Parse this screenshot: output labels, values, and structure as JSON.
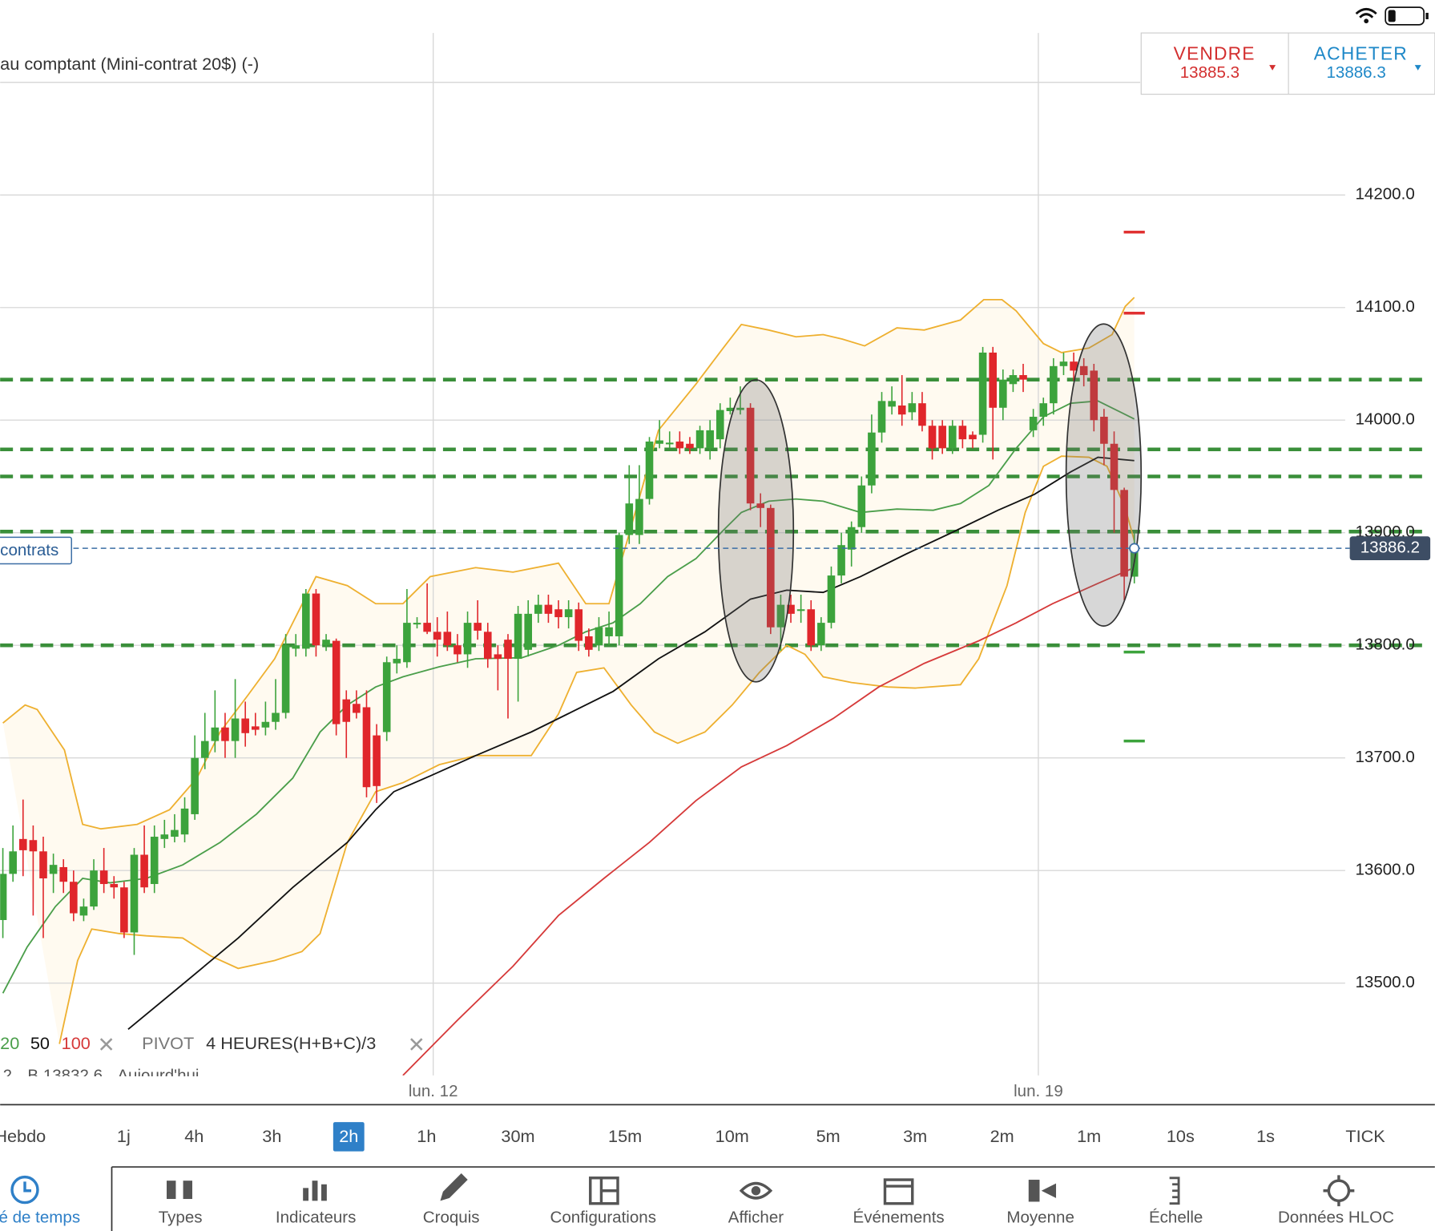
{
  "header_title": "au comptant (Mini-contrat 20$) (-)",
  "quote": {
    "sell_label": "VENDRE",
    "sell_price": 13885.3,
    "buy_label": "ACHETER",
    "buy_price": 13886.3
  },
  "chart_data": {
    "type": "candlestick",
    "up_color": "#3ca33c",
    "down_color": "#e0262b",
    "open": [
      13556,
      13597,
      13628,
      13627,
      13617,
      13597,
      13603,
      13590,
      13560,
      13568,
      13600,
      13588,
      13585,
      13545,
      13614,
      13588,
      13628,
      13630,
      13632,
      13650,
      13700,
      13715,
      13727,
      13715,
      13735,
      13728,
      13727,
      13732,
      13740,
      13797,
      13797,
      13846,
      13800,
      13804,
      13752,
      13748,
      13745,
      13720,
      13723,
      13784,
      13785,
      13819,
      13820,
      13812,
      13812,
      13800,
      13792,
      13820,
      13812,
      13792,
      13805,
      13788,
      13796,
      13828,
      13836,
      13832,
      13825,
      13832,
      13808,
      13800,
      13808,
      13808,
      13898,
      13898,
      13930,
      13979,
      13980,
      13981,
      13979,
      13975,
      13975,
      13983,
      14008,
      14009,
      14011,
      13926,
      13922,
      13816,
      13836,
      13832,
      13832,
      13800,
      13820,
      13862,
      13885,
      13905,
      13942,
      13989,
      14012,
      14013,
      14007,
      14015,
      13995,
      13995,
      13975,
      13995,
      13987,
      13987,
      14060,
      14011,
      14032,
      14040,
      13991,
      14003,
      14015,
      14048,
      14052,
      14048,
      14044,
      14003,
      13979,
      13938,
      13861
    ],
    "high": [
      13620,
      13640,
      13663,
      13640,
      13630,
      13615,
      13610,
      13600,
      13575,
      13610,
      13620,
      13595,
      13590,
      13620,
      13640,
      13640,
      13645,
      13650,
      13665,
      13720,
      13740,
      13760,
      13740,
      13770,
      13750,
      13740,
      13750,
      13770,
      13810,
      13810,
      13850,
      13850,
      13810,
      13806,
      13760,
      13760,
      13760,
      13730,
      13790,
      13800,
      13850,
      13825,
      13855,
      13825,
      13830,
      13810,
      13830,
      13840,
      13820,
      13800,
      13810,
      13835,
      13840,
      13845,
      13845,
      13840,
      13840,
      13838,
      13815,
      13825,
      13830,
      13900,
      13960,
      13960,
      13985,
      14000,
      13990,
      13990,
      13985,
      13995,
      14000,
      14015,
      14020,
      14030,
      14015,
      13935,
      13925,
      13845,
      13845,
      13845,
      13840,
      13825,
      13870,
      13900,
      13910,
      13950,
      14005,
      14025,
      14030,
      14040,
      14025,
      14025,
      14000,
      14000,
      14000,
      14000,
      13990,
      14065,
      14065,
      14045,
      14045,
      14050,
      14010,
      14020,
      14055,
      14060,
      14060,
      14055,
      14050,
      14010,
      13990,
      13940,
      13900
    ],
    "low": [
      13540,
      13590,
      13595,
      13560,
      13540,
      13580,
      13580,
      13555,
      13555,
      13565,
      13580,
      13575,
      13540,
      13525,
      13580,
      13580,
      13620,
      13625,
      13625,
      13645,
      13690,
      13705,
      13700,
      13700,
      13710,
      13720,
      13720,
      13725,
      13735,
      13790,
      13790,
      13790,
      13795,
      13720,
      13700,
      13735,
      13665,
      13660,
      13715,
      13775,
      13780,
      13815,
      13810,
      13790,
      13795,
      13785,
      13780,
      13805,
      13780,
      13760,
      13735,
      13750,
      13790,
      13820,
      13820,
      13815,
      13815,
      13795,
      13790,
      13795,
      13800,
      13800,
      13890,
      13890,
      13925,
      13975,
      13975,
      13970,
      13970,
      13970,
      13965,
      13975,
      14005,
      14005,
      13920,
      13905,
      13810,
      13795,
      13820,
      13820,
      13795,
      13795,
      13815,
      13855,
      13870,
      13900,
      13935,
      13980,
      14005,
      13995,
      14000,
      13990,
      13965,
      13970,
      13970,
      13975,
      13975,
      13980,
      13965,
      14000,
      14025,
      14025,
      13985,
      13995,
      14005,
      14040,
      14035,
      14030,
      13990,
      13960,
      13900,
      13840,
      13855
    ],
    "close": [
      13597,
      13617,
      13618,
      13617,
      13593,
      13605,
      13590,
      13562,
      13568,
      13600,
      13588,
      13585,
      13545,
      13614,
      13585,
      13630,
      13632,
      13636,
      13655,
      13700,
      13715,
      13727,
      13715,
      13735,
      13722,
      13725,
      13732,
      13740,
      13800,
      13800,
      13846,
      13800,
      13805,
      13730,
      13732,
      13740,
      13674,
      13675,
      13785,
      13788,
      13820,
      13820,
      13812,
      13805,
      13800,
      13792,
      13820,
      13813,
      13788,
      13788,
      13788,
      13828,
      13828,
      13836,
      13828,
      13825,
      13832,
      13804,
      13796,
      13816,
      13816,
      13898,
      13926,
      13930,
      13981,
      13982,
      13980,
      13975,
      13975,
      13991,
      13991,
      14009,
      14011,
      14011,
      13926,
      13922,
      13816,
      13836,
      13828,
      13832,
      13800,
      13820,
      13862,
      13889,
      13905,
      13942,
      13989,
      14017,
      14017,
      14005,
      14015,
      13995,
      13975,
      13975,
      13995,
      13983,
      13983,
      14060,
      14011,
      14036,
      14040,
      14036,
      14003,
      14015,
      14048,
      14052,
      14044,
      14040,
      14000,
      13979,
      13938,
      13861,
      13886
    ],
    "xlim": [
      -0.27,
      141.75
    ],
    "ylim": [
      13418,
      14300
    ],
    "yticks": [
      {
        "value": 13500,
        "label": "13500.0"
      },
      {
        "value": 13600,
        "label": "13600.0"
      },
      {
        "value": 13700,
        "label": "13700.0"
      },
      {
        "value": 13800,
        "label": "13800.0"
      },
      {
        "value": 13900,
        "label": "13900.0"
      },
      {
        "value": 14000,
        "label": "14000.0"
      },
      {
        "value": 14100,
        "label": "14100.0"
      },
      {
        "value": 14200,
        "label": "14200.0"
      }
    ],
    "x_labels": [
      {
        "value": 42.6,
        "label": "lun. 12"
      },
      {
        "value": 102.5,
        "label": "lun. 19"
      }
    ],
    "bands": {
      "color": "#eeb030",
      "fill": "#fffaf0",
      "upper": {
        "x": [
          0,
          2.2,
          3.4,
          6.1,
          7.9,
          9.7,
          13.3,
          16.5,
          19.2,
          21.5,
          24.2,
          26.9,
          28.7,
          31,
          34.1,
          36.9,
          39.6,
          42.3,
          46.8,
          50.5,
          55,
          57.7,
          60,
          61.8,
          64.9,
          68.6,
          71.3,
          73.1,
          75.8,
          78.5,
          81.2,
          83.1,
          85.3,
          88.5,
          91.2,
          94.8,
          97.1,
          98.9,
          100.3,
          103,
          104.8,
          107.5,
          109.8,
          111.1,
          112
        ],
        "values": [
          13731,
          13747,
          13743,
          13707,
          13641,
          13637,
          13641,
          13654,
          13682,
          13723,
          13755,
          13788,
          13820,
          13861,
          13853,
          13837,
          13837,
          13861,
          13869,
          13865,
          13873,
          13837,
          13837,
          13893,
          13991,
          14032,
          14064,
          14085,
          14080,
          14074,
          14076,
          14072,
          14066,
          14082,
          14080,
          14089,
          14107,
          14107,
          14097,
          14068,
          14060,
          14064,
          14076,
          14101,
          14109
        ]
      },
      "lower": {
        "x": [
          5.6,
          7.4,
          8.8,
          11.5,
          14.2,
          17.8,
          20.6,
          23.3,
          26.9,
          29.6,
          31.4,
          34.1,
          36.9,
          39.6,
          43.2,
          46.8,
          52.3,
          55,
          56.8,
          59.5,
          62.2,
          64.5,
          66.8,
          69.5,
          72.2,
          74.9,
          77.6,
          79.4,
          81.2,
          84,
          87.6,
          90.3,
          94.8,
          96.6,
          99.4,
          101.2,
          103,
          104.8,
          107.5,
          109.3,
          111.1,
          112
        ],
        "values": [
          13446,
          13520,
          13548,
          13544,
          13542,
          13540,
          13524,
          13513,
          13520,
          13528,
          13544,
          13625,
          13670,
          13678,
          13694,
          13702,
          13702,
          13739,
          13776,
          13780,
          13747,
          13723,
          13713,
          13723,
          13747,
          13776,
          13800,
          13792,
          13772,
          13767,
          13763,
          13762,
          13765,
          13788,
          13853,
          13918,
          13959,
          13968,
          13967,
          13959,
          13922,
          13893
        ]
      }
    },
    "indicators": [
      {
        "name": "20",
        "color": "#4a9e4a",
        "x": [
          0,
          2.4,
          5.2,
          7.9,
          10.6,
          14.2,
          17.8,
          21.5,
          25.1,
          28.7,
          31.4,
          34.1,
          36.9,
          39.6,
          43.2,
          46.8,
          51.4,
          55,
          57.7,
          60.4,
          63.1,
          65.8,
          68.6,
          71.3,
          73.1,
          75.8,
          78.5,
          81.2,
          84.9,
          88.5,
          92.1,
          94.8,
          97.6,
          100.3,
          103,
          105.7,
          108.4,
          112
        ],
        "values": [
          13491,
          13532,
          13568,
          13593,
          13589,
          13593,
          13605,
          13625,
          13650,
          13682,
          13723,
          13747,
          13763,
          13772,
          13781,
          13788,
          13789,
          13800,
          13812,
          13820,
          13837,
          13861,
          13877,
          13902,
          13918,
          13928,
          13930,
          13928,
          13918,
          13921,
          13920,
          13926,
          13942,
          13975,
          14003,
          14015,
          14017,
          14001
        ]
      },
      {
        "name": "50",
        "color": "#111111",
        "x": [
          12.4,
          17.8,
          23.3,
          28.7,
          34.1,
          36.9,
          38.7,
          42.3,
          46.8,
          52.3,
          55.9,
          60.4,
          64.9,
          69.5,
          74,
          77.6,
          81.2,
          84.9,
          89.4,
          93.9,
          98.5,
          102.1,
          105.7,
          108.4,
          112
        ],
        "values": [
          13459,
          13499,
          13540,
          13585,
          13625,
          13654,
          13670,
          13684,
          13702,
          13723,
          13739,
          13759,
          13788,
          13812,
          13841,
          13849,
          13847,
          13861,
          13881,
          13900,
          13920,
          13934,
          13954,
          13967,
          13964
        ]
      },
      {
        "name": "100",
        "color": "#d63a3a",
        "x": [
          39.6,
          45,
          50.5,
          55,
          59.5,
          64,
          68.6,
          73.1,
          77.6,
          82.2,
          86.7,
          91.2,
          96.6,
          100.3,
          103.9,
          108.4,
          112
        ],
        "values": [
          13418,
          13467,
          13515,
          13560,
          13593,
          13625,
          13662,
          13692,
          13711,
          13735,
          13763,
          13784,
          13804,
          13820,
          13837,
          13855,
          13869
        ]
      }
    ],
    "pivot_levels": [
      14036,
      13974,
      13950,
      13901,
      13800
    ],
    "pivot_color": "#3a8f3a",
    "pivot_markers": [
      {
        "color": "#e03030",
        "values": [
          14167,
          14095
        ]
      },
      {
        "color": "#3ca33c",
        "values": [
          13794,
          13715
        ]
      }
    ],
    "last_price": 13886.2,
    "position_label": "contrats",
    "pivot_legend": [
      "PIVOT",
      "4 HEURES",
      "(H+B+C)/3"
    ],
    "info_row": [
      "2",
      "B 13832.6",
      "Aujourd'hui"
    ]
  },
  "timeframes": {
    "items": [
      "Hebdo",
      "1j",
      "4h",
      "3h",
      "2h",
      "1h",
      "30m",
      "15m",
      "10m",
      "5m",
      "3m",
      "2m",
      "1m",
      "10s",
      "1s",
      "TICK"
    ],
    "selected": 4
  },
  "toolbar": [
    "é de temps",
    "Types",
    "Indicateurs",
    "Croquis",
    "Configurations",
    "Afficher",
    "Événements",
    "Moyenne",
    "Échelle",
    "Données HLOC"
  ]
}
